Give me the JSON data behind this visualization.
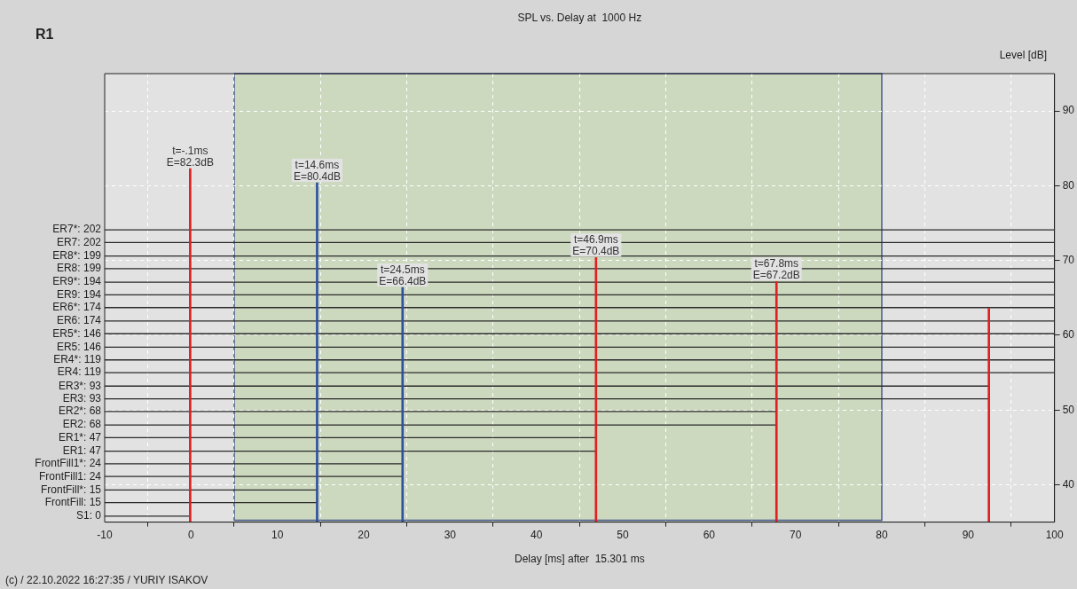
{
  "chart_data": {
    "type": "bar",
    "title": "SPL vs. Delay at  1000 Hz",
    "subtitle": "R1",
    "xlabel": "Delay [ms] after  15.301 ms",
    "ylabel": "Level [dB]",
    "series": [
      {
        "x": [
          -0.1,
          14.6,
          24.5,
          46.9,
          67.8,
          92.4
        ],
        "values": [
          82.3,
          80.4,
          66.4,
          70.4,
          67.2,
          63.6
        ],
        "colors": [
          "#e02020",
          "#3050a0",
          "#3050a0",
          "#e02020",
          "#e02020",
          "#e02020"
        ],
        "value_labels": [
          "t=-.1ms\nE=82.3dB",
          "t=14.6ms\nE=80.4dB",
          "t=24.5ms\nE=66.4dB",
          "t=46.9ms\nE=70.4dB",
          "t=67.8ms\nE=67.2dB",
          null
        ]
      },
      {
        "type": "line",
        "name": "ER7*: 202",
        "color": "#2a2a2a",
        "x": [
          -10,
          100
        ],
        "values": [
          74.1,
          74.1
        ]
      },
      {
        "type": "line",
        "name": "ER7: 202",
        "color": "#2a2a2a",
        "x": [
          -10,
          100
        ],
        "values": [
          72.4,
          72.4
        ]
      },
      {
        "type": "line",
        "name": "ER8*: 199",
        "color": "#2a2a2a",
        "x": [
          -10,
          100
        ],
        "values": [
          70.6,
          70.6
        ]
      },
      {
        "type": "line",
        "name": "ER8: 199",
        "color": "#2a2a2a",
        "x": [
          -10,
          100
        ],
        "values": [
          68.9,
          68.9
        ]
      },
      {
        "type": "line",
        "name": "ER9*: 194",
        "color": "#2a2a2a",
        "x": [
          -10,
          100
        ],
        "values": [
          67.1,
          67.1
        ]
      },
      {
        "type": "line",
        "name": "ER9: 194",
        "color": "#2a2a2a",
        "x": [
          -10,
          100
        ],
        "values": [
          65.4,
          65.4
        ]
      },
      {
        "type": "line",
        "name": "ER6*: 174",
        "color": "#2a2a2a",
        "x": [
          -10,
          100
        ],
        "values": [
          63.7,
          63.7
        ]
      },
      {
        "type": "line",
        "name": "ER6: 174",
        "color": "#2a2a2a",
        "x": [
          -10,
          100
        ],
        "values": [
          61.9,
          61.9
        ]
      },
      {
        "type": "line",
        "name": "ER5*: 146",
        "color": "#2a2a2a",
        "x": [
          -10,
          100
        ],
        "values": [
          60.2,
          60.2
        ]
      },
      {
        "type": "line",
        "name": "ER5: 146",
        "color": "#2a2a2a",
        "x": [
          -10,
          100
        ],
        "values": [
          58.4,
          58.4
        ]
      },
      {
        "type": "line",
        "name": "ER4*: 119",
        "color": "#2a2a2a",
        "x": [
          -10,
          100
        ],
        "values": [
          56.7,
          56.7
        ]
      },
      {
        "type": "line",
        "name": "ER4: 119",
        "color": "#2a2a2a",
        "x": [
          -10,
          100
        ],
        "values": [
          55.0,
          55.0
        ]
      },
      {
        "type": "line",
        "name": "ER3*: 93",
        "color": "#2a2a2a",
        "x": [
          -10,
          92.4
        ],
        "values": [
          53.2,
          53.2
        ]
      },
      {
        "type": "line",
        "name": "ER3: 93",
        "color": "#2a2a2a",
        "x": [
          -10,
          92.4
        ],
        "values": [
          51.5,
          51.5
        ]
      },
      {
        "type": "line",
        "name": "ER2*: 68",
        "color": "#2a2a2a",
        "x": [
          -10,
          67.8
        ],
        "values": [
          49.8,
          49.8
        ]
      },
      {
        "type": "line",
        "name": "ER2: 68",
        "color": "#2a2a2a",
        "x": [
          -10,
          67.8
        ],
        "values": [
          48.0,
          48.0
        ]
      },
      {
        "type": "line",
        "name": "ER1*: 47",
        "color": "#2a2a2a",
        "x": [
          -10,
          46.9
        ],
        "values": [
          46.3,
          46.3
        ]
      },
      {
        "type": "line",
        "name": "ER1: 47",
        "color": "#2a2a2a",
        "x": [
          -10,
          46.9
        ],
        "values": [
          44.5,
          44.5
        ]
      },
      {
        "type": "line",
        "name": "FrontFill1*: 24",
        "color": "#2a2a2a",
        "x": [
          -10,
          24.5
        ],
        "values": [
          42.8,
          42.8
        ]
      },
      {
        "type": "line",
        "name": "FrontFill1: 24",
        "color": "#2a2a2a",
        "x": [
          -10,
          24.5
        ],
        "values": [
          41.1,
          41.1
        ]
      },
      {
        "type": "line",
        "name": "FrontFill*: 15",
        "color": "#2a2a2a",
        "x": [
          -10,
          14.6
        ],
        "values": [
          39.3,
          39.3
        ]
      },
      {
        "type": "line",
        "name": "FrontFill: 15",
        "color": "#2a2a2a",
        "x": [
          -10,
          14.6
        ],
        "values": [
          37.6,
          37.6
        ]
      },
      {
        "type": "line",
        "name": "S1: 0",
        "color": "#2a2a2a",
        "x": [
          -10,
          -0.1
        ],
        "values": [
          35.8,
          35.8
        ]
      }
    ],
    "xlim": [
      -10,
      100
    ],
    "xticks": [
      -10,
      0,
      10,
      20,
      30,
      40,
      50,
      60,
      70,
      80,
      90,
      100
    ],
    "ylim": [
      35,
      95
    ],
    "yticks": [
      40,
      50,
      60,
      70,
      80,
      90
    ],
    "grid": true,
    "legend": false,
    "marker": "none",
    "line_style": "solid",
    "bands": [
      {
        "axis": "x",
        "from": 5,
        "to": 80,
        "color": "#cdd9bf"
      }
    ],
    "annotations": [
      "(c) / 22.10.2022 16:27:35 / YURIY ISAKOV"
    ]
  }
}
